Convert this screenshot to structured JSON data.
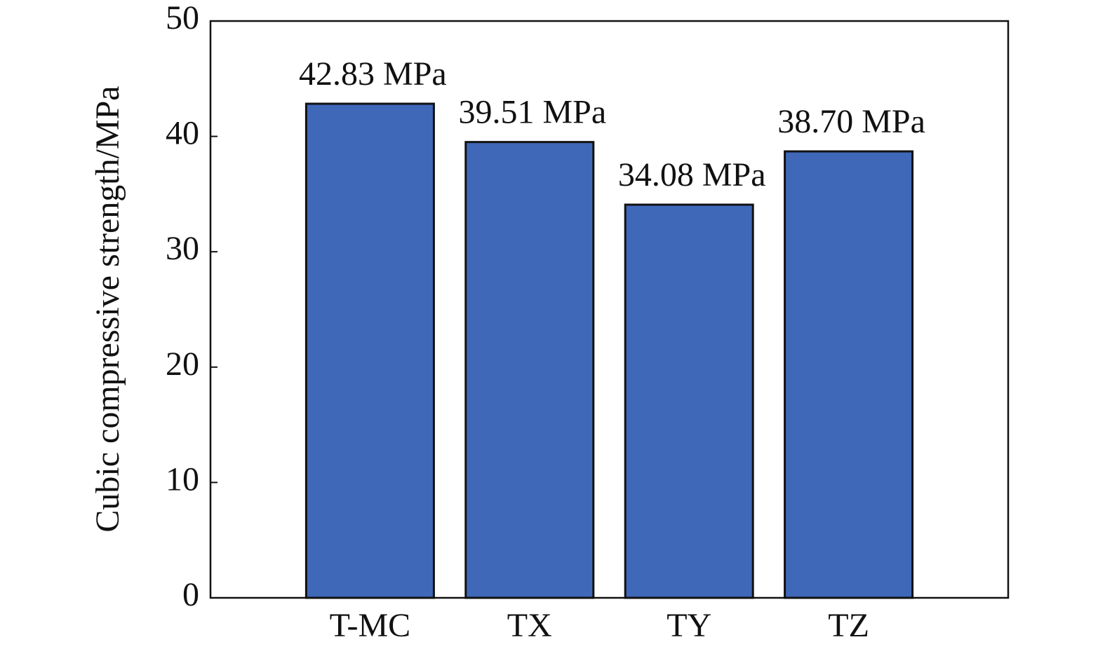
{
  "chart_data": {
    "type": "bar",
    "y_label": "Cubic compressive strength/MPa",
    "categories": [
      "T-MC",
      "TX",
      "TY",
      "TZ"
    ],
    "values": [
      42.83,
      39.51,
      34.08,
      38.7
    ],
    "value_labels": [
      "42.83 MPa",
      "39.51 MPa",
      "34.08 MPa",
      "38.70 MPa"
    ],
    "color": "#3f68b9",
    "ylim": [
      0,
      50
    ],
    "yticks": [
      0,
      10,
      20,
      30,
      40,
      50
    ]
  }
}
